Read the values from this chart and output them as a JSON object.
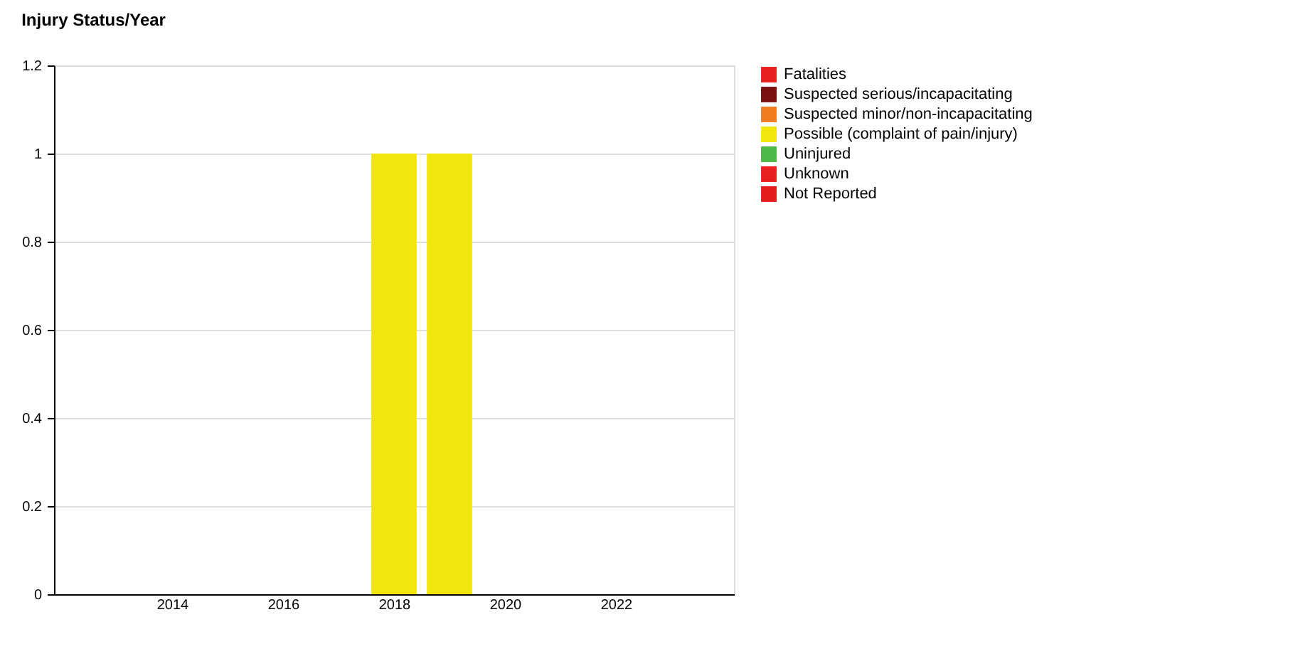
{
  "chart_data": {
    "type": "bar",
    "title": "Injury Status/Year",
    "x": [
      2018,
      2019
    ],
    "series": [
      {
        "name": "Fatalities",
        "color": "#e8201e",
        "values": [
          0,
          0
        ]
      },
      {
        "name": "Suspected serious/incapacitating",
        "color": "#7b1010",
        "values": [
          0,
          0
        ]
      },
      {
        "name": "Suspected minor/non-incapacitating",
        "color": "#f07c22",
        "values": [
          0,
          0
        ]
      },
      {
        "name": "Possible (complaint of pain/injury)",
        "color": "#f2e60c",
        "values": [
          1,
          1
        ]
      },
      {
        "name": "Uninjured",
        "color": "#4cb848",
        "values": [
          0,
          0
        ]
      },
      {
        "name": "Unknown",
        "color": "#e8201e",
        "values": [
          0,
          0
        ]
      },
      {
        "name": "Not Reported",
        "color": "#e41e1e",
        "values": [
          0,
          0
        ]
      }
    ],
    "xlim": [
      2012,
      2024
    ],
    "xticks": [
      2014,
      2016,
      2018,
      2020,
      2022
    ],
    "ylim": [
      0,
      1.2
    ],
    "yticks": [
      0,
      0.2,
      0.4,
      0.6,
      0.8,
      1,
      1.2
    ],
    "grid": "y",
    "legend": "right"
  }
}
